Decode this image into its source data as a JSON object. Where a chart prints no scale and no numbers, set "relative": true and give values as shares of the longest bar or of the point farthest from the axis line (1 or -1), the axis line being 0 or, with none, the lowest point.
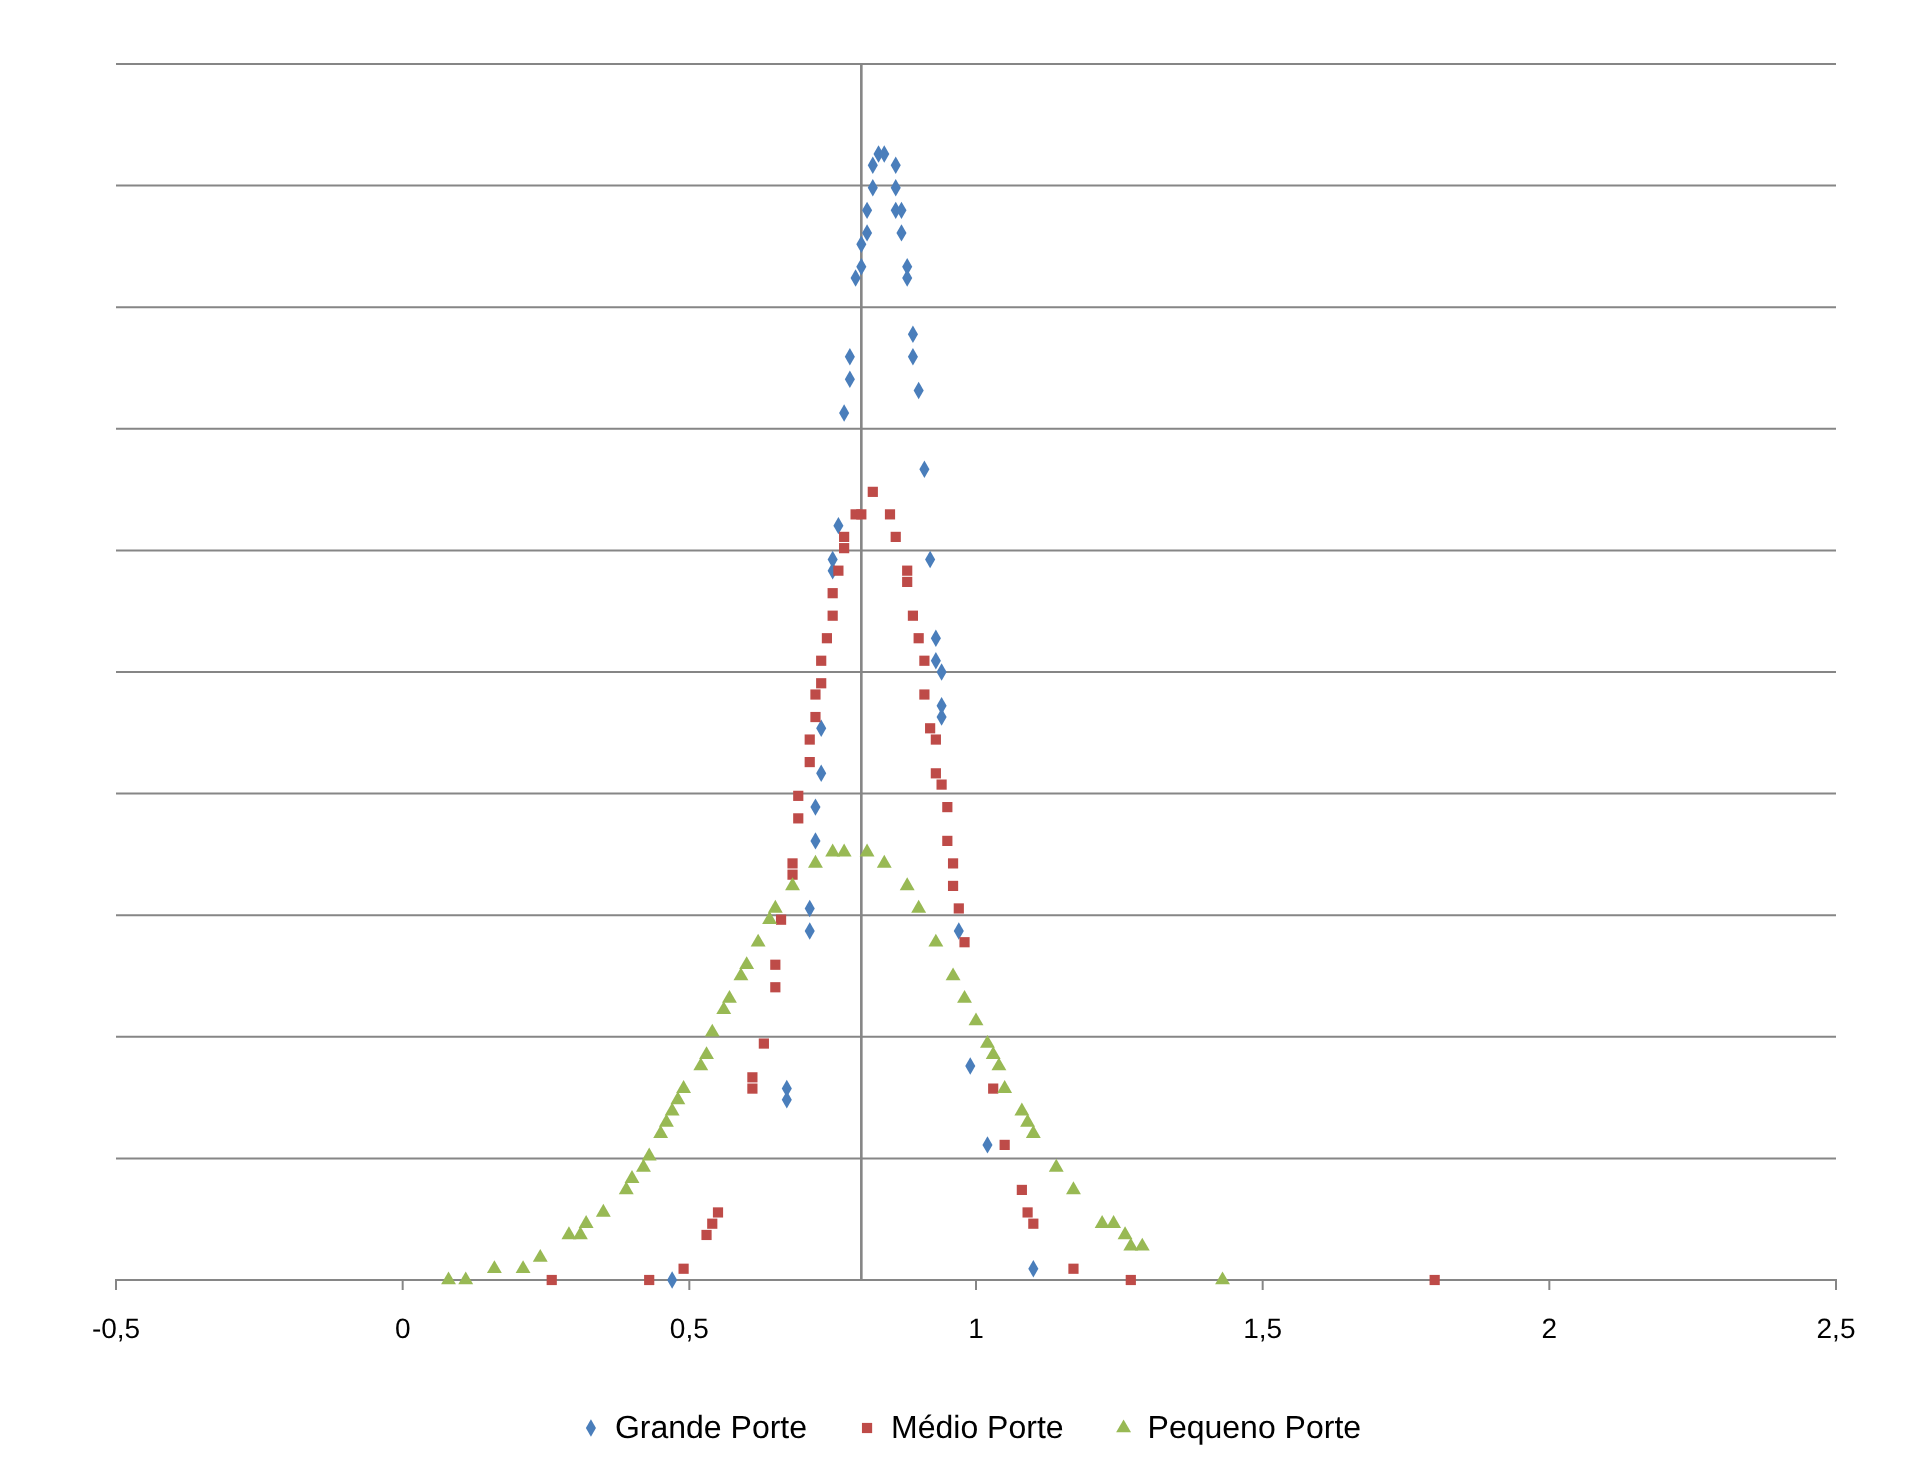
{
  "chart_data": {
    "type": "scatter",
    "relative": true,
    "grid": "y",
    "legend": "bottom",
    "xlim": [
      -0.5,
      2.5
    ],
    "xticks": [
      {
        "value": -0.5,
        "label": "-0,5"
      },
      0,
      {
        "value": 0.5,
        "label": "0,5"
      },
      1,
      {
        "value": 1.5,
        "label": "1,5"
      },
      2,
      {
        "value": 2.5,
        "label": "2,5"
      }
    ],
    "ref_lines": [
      {
        "axis": "x",
        "value": 0.8,
        "color": "#868686"
      }
    ],
    "series": [
      {
        "name": "Grande Porte",
        "color": "#4a7ebb",
        "marker": "diamond",
        "x": [
          0.47,
          0.67,
          0.67,
          0.71,
          0.71,
          0.72,
          0.72,
          0.73,
          0.73,
          0.75,
          0.75,
          0.76,
          0.77,
          0.78,
          0.78,
          0.79,
          0.8,
          0.8,
          0.81,
          0.81,
          0.82,
          0.82,
          0.83,
          0.84,
          0.86,
          0.86,
          0.86,
          0.87,
          0.87,
          0.88,
          0.88,
          0.89,
          0.89,
          0.9,
          0.91,
          0.92,
          0.93,
          0.93,
          0.94,
          0.94,
          0.94,
          0.97,
          0.99,
          1.02,
          1.1
        ],
        "values": [
          0.0,
          0.16,
          0.17,
          0.31,
          0.33,
          0.39,
          0.42,
          0.45,
          0.49,
          0.63,
          0.64,
          0.67,
          0.77,
          0.8,
          0.82,
          0.89,
          0.9,
          0.92,
          0.93,
          0.95,
          0.97,
          0.99,
          1.0,
          1.0,
          0.99,
          0.97,
          0.95,
          0.95,
          0.93,
          0.9,
          0.89,
          0.84,
          0.82,
          0.79,
          0.72,
          0.64,
          0.57,
          0.55,
          0.54,
          0.51,
          0.5,
          0.31,
          0.19,
          0.12,
          0.01
        ]
      },
      {
        "name": "Médio Porte",
        "color": "#be4b48",
        "marker": "square",
        "x": [
          0.26,
          0.43,
          0.49,
          0.53,
          0.54,
          0.55,
          0.61,
          0.61,
          0.63,
          0.65,
          0.65,
          0.66,
          0.68,
          0.68,
          0.69,
          0.69,
          0.71,
          0.71,
          0.72,
          0.72,
          0.73,
          0.73,
          0.74,
          0.75,
          0.75,
          0.76,
          0.77,
          0.77,
          0.79,
          0.8,
          0.82,
          0.85,
          0.86,
          0.88,
          0.88,
          0.89,
          0.9,
          0.91,
          0.91,
          0.92,
          0.93,
          0.93,
          0.94,
          0.95,
          0.95,
          0.96,
          0.96,
          0.97,
          0.98,
          1.03,
          1.05,
          1.08,
          1.09,
          1.1,
          1.17,
          1.27,
          1.8
        ],
        "values": [
          0.0,
          0.0,
          0.01,
          0.04,
          0.05,
          0.06,
          0.17,
          0.18,
          0.21,
          0.26,
          0.28,
          0.32,
          0.36,
          0.37,
          0.41,
          0.43,
          0.46,
          0.48,
          0.5,
          0.52,
          0.53,
          0.55,
          0.57,
          0.59,
          0.61,
          0.63,
          0.65,
          0.66,
          0.68,
          0.68,
          0.7,
          0.68,
          0.66,
          0.63,
          0.62,
          0.59,
          0.57,
          0.55,
          0.52,
          0.49,
          0.48,
          0.45,
          0.44,
          0.42,
          0.39,
          0.37,
          0.35,
          0.33,
          0.3,
          0.17,
          0.12,
          0.08,
          0.06,
          0.05,
          0.01,
          0.0,
          0.0
        ]
      },
      {
        "name": "Pequeno Porte",
        "color": "#98b954",
        "marker": "triangle",
        "x": [
          0.08,
          0.11,
          0.16,
          0.21,
          0.24,
          0.29,
          0.31,
          0.32,
          0.35,
          0.39,
          0.4,
          0.42,
          0.43,
          0.45,
          0.46,
          0.47,
          0.48,
          0.49,
          0.52,
          0.53,
          0.54,
          0.56,
          0.57,
          0.59,
          0.6,
          0.62,
          0.64,
          0.65,
          0.68,
          0.72,
          0.75,
          0.77,
          0.81,
          0.84,
          0.88,
          0.9,
          0.93,
          0.96,
          0.98,
          1.0,
          1.02,
          1.03,
          1.04,
          1.05,
          1.08,
          1.09,
          1.1,
          1.14,
          1.17,
          1.22,
          1.24,
          1.26,
          1.27,
          1.29,
          1.43
        ],
        "values": [
          0.0,
          0.0,
          0.01,
          0.01,
          0.02,
          0.04,
          0.04,
          0.05,
          0.06,
          0.08,
          0.09,
          0.1,
          0.11,
          0.13,
          0.14,
          0.15,
          0.16,
          0.17,
          0.19,
          0.2,
          0.22,
          0.24,
          0.25,
          0.27,
          0.28,
          0.3,
          0.32,
          0.33,
          0.35,
          0.37,
          0.38,
          0.38,
          0.38,
          0.37,
          0.35,
          0.33,
          0.3,
          0.27,
          0.25,
          0.23,
          0.21,
          0.2,
          0.19,
          0.17,
          0.15,
          0.14,
          0.13,
          0.1,
          0.08,
          0.05,
          0.05,
          0.04,
          0.03,
          0.03,
          0.0
        ]
      }
    ]
  }
}
